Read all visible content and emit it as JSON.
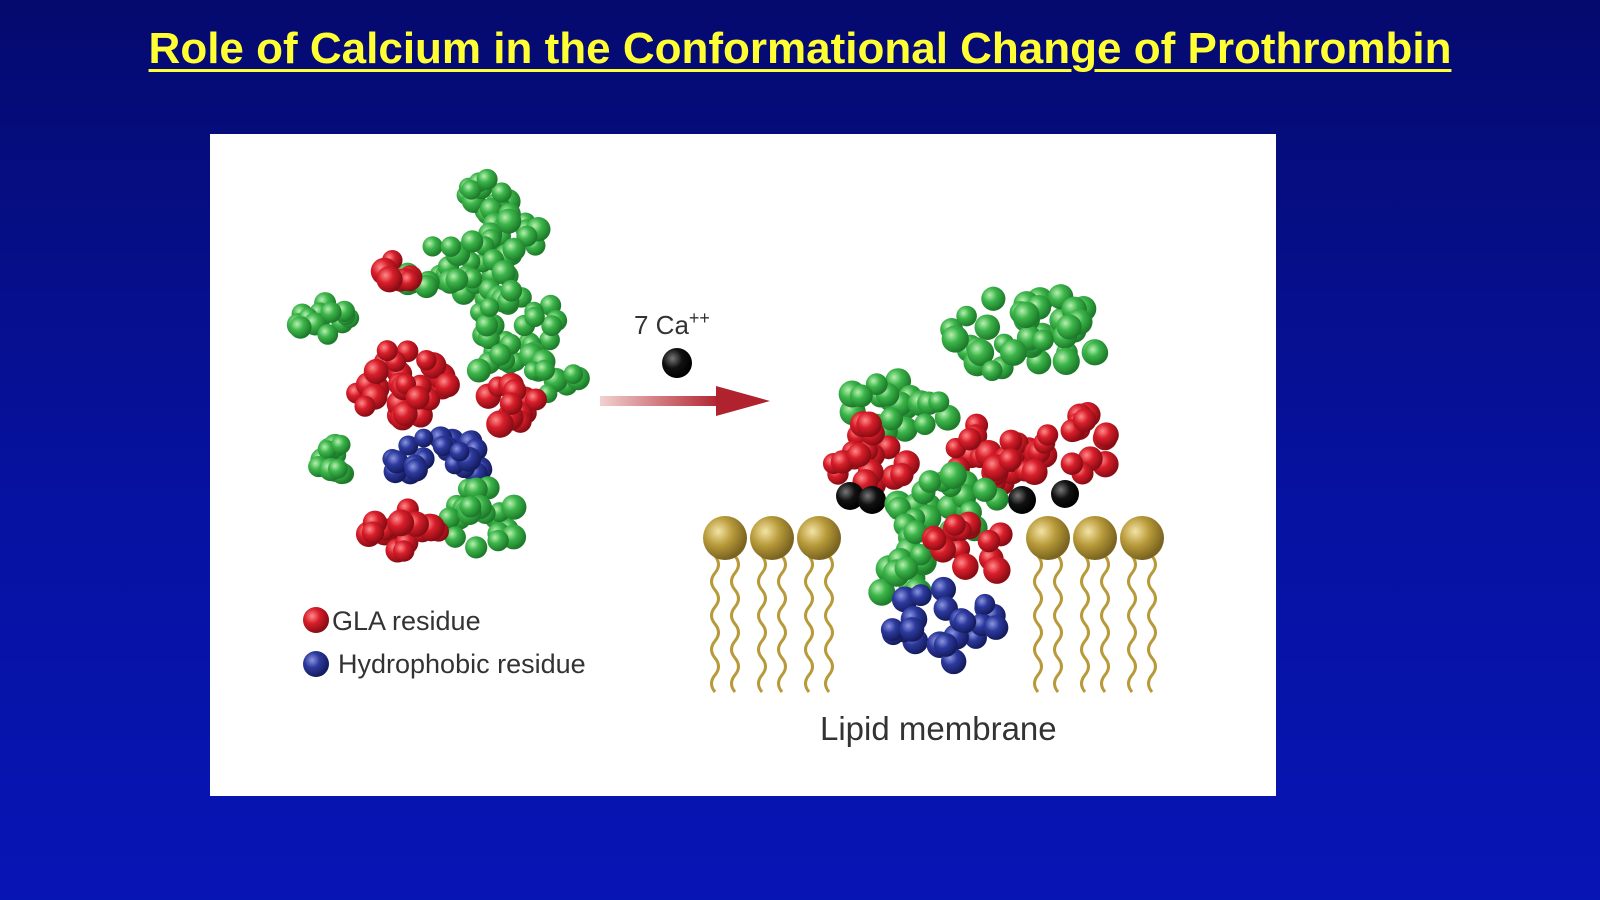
{
  "slide": {
    "title": "Role of Calcium in the Conformational Change of Prothrombin"
  },
  "figure": {
    "calcium_label": "7 Ca",
    "calcium_superscript": "++",
    "legend": {
      "gla_label": "GLA residue",
      "hydrophobic_label": "Hydrophobic residue"
    },
    "membrane_label": "Lipid membrane"
  },
  "colors": {
    "background": "#0612a0",
    "title": "#ffff33",
    "gla_residue": "#d81e2a",
    "hydrophobic_residue": "#2d3a9e",
    "protein_green": "#3cb54a",
    "calcium": "#111111",
    "lipid_head": "#b89a3a",
    "arrow": "#b0222e"
  }
}
